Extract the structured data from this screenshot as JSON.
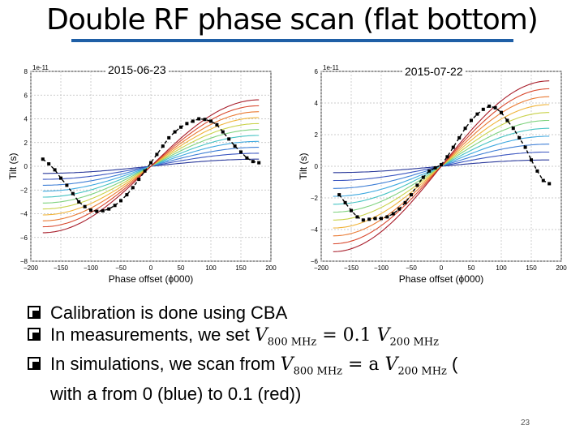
{
  "title": "Double RF phase scan (flat bottom)",
  "colors": {
    "title_rule": "#1f5fa6",
    "measurement": "#000000",
    "sim_palette": [
      "#2b3a9b",
      "#3a55c0",
      "#3f7fd6",
      "#3fa9e0",
      "#45c3c3",
      "#7fd27f",
      "#c9d24a",
      "#f0b43a",
      "#ea7a33",
      "#d9492e",
      "#a81e2b"
    ]
  },
  "slide": {
    "bullets": [
      {
        "text": "Calibration is done using CBA"
      },
      {
        "text": "In measurements, we set ",
        "math": "V",
        "sub1": "800 MHz",
        "mid": " = 0.1 ",
        "math2": "V",
        "sub2": "200 MHz",
        "tail": ""
      },
      {
        "text": "In simulations, we scan from ",
        "math": "V",
        "sub1": "800 MHz",
        "mid": " = a ",
        "math2": "V",
        "sub2": "200 MHz",
        "tail": " (",
        "cont": "with a from 0 (blue) to 0.1 (red))"
      }
    ],
    "page_number": "23"
  },
  "chart_data": [
    {
      "type": "line",
      "title": "2015-06-23",
      "xlabel": "Phase offset (ϕ000)",
      "ylabel": "Tilt (s)",
      "y_multiplier_text": "1e-11",
      "xlim": [
        -200,
        200
      ],
      "ylim": [
        -8,
        8
      ],
      "xticks": [
        -200,
        -150,
        -100,
        -50,
        0,
        50,
        100,
        150,
        200
      ],
      "yticks": [
        -8,
        -6,
        -4,
        -2,
        0,
        2,
        4,
        6,
        8
      ],
      "grid": true,
      "simulation": {
        "a_values": [
          0,
          0.01,
          0.02,
          0.03,
          0.04,
          0.05,
          0.06,
          0.07,
          0.08,
          0.09,
          0.1
        ],
        "x_range": [
          -180,
          180
        ],
        "zero_crossing": 0,
        "amplitudes": [
          0.6,
          1.1,
          1.6,
          2.1,
          2.6,
          3.1,
          3.6,
          4.1,
          4.6,
          5.1,
          5.6
        ]
      },
      "measurement": {
        "x": [
          -180,
          -170,
          -160,
          -150,
          -140,
          -130,
          -120,
          -110,
          -100,
          -90,
          -80,
          -70,
          -60,
          -50,
          -40,
          -30,
          -20,
          -10,
          0,
          10,
          20,
          30,
          40,
          50,
          60,
          70,
          80,
          90,
          100,
          110,
          120,
          130,
          140,
          150,
          160,
          170,
          180
        ],
        "y": [
          0.6,
          0.2,
          -0.3,
          -1.0,
          -1.6,
          -2.3,
          -3.0,
          -3.4,
          -3.7,
          -3.8,
          -3.75,
          -3.6,
          -3.3,
          -2.9,
          -2.4,
          -1.8,
          -1.1,
          -0.4,
          0.3,
          1.0,
          1.7,
          2.4,
          2.9,
          3.3,
          3.6,
          3.8,
          4.0,
          3.95,
          3.8,
          3.5,
          2.9,
          2.3,
          1.7,
          1.2,
          0.7,
          0.4,
          0.3
        ]
      }
    },
    {
      "type": "line",
      "title": "2015-07-22",
      "xlabel": "Phase offset (ϕ000)",
      "ylabel": "Tilt (s)",
      "y_multiplier_text": "1e-11",
      "xlim": [
        -200,
        200
      ],
      "ylim": [
        -6,
        6
      ],
      "xticks": [
        -200,
        -150,
        -100,
        -50,
        0,
        50,
        100,
        150,
        200
      ],
      "yticks": [
        -6,
        -4,
        -2,
        0,
        2,
        4,
        6
      ],
      "grid": true,
      "simulation": {
        "a_values": [
          0,
          0.01,
          0.02,
          0.03,
          0.04,
          0.05,
          0.06,
          0.07,
          0.08,
          0.09,
          0.1
        ],
        "x_range": [
          -180,
          180
        ],
        "zero_crossing": 0,
        "amplitudes": [
          0.4,
          0.9,
          1.4,
          1.9,
          2.4,
          2.9,
          3.4,
          3.9,
          4.4,
          4.9,
          5.4
        ]
      },
      "measurement": {
        "x": [
          -170,
          -160,
          -150,
          -140,
          -130,
          -120,
          -110,
          -100,
          -90,
          -80,
          -70,
          -60,
          -50,
          -40,
          -30,
          -20,
          -10,
          0,
          10,
          20,
          30,
          40,
          50,
          60,
          70,
          80,
          90,
          100,
          110,
          120,
          130,
          140,
          150,
          160,
          170,
          180
        ],
        "y": [
          -1.8,
          -2.3,
          -2.8,
          -3.2,
          -3.4,
          -3.35,
          -3.3,
          -3.3,
          -3.2,
          -3.0,
          -2.7,
          -2.3,
          -1.8,
          -1.2,
          -0.7,
          -0.3,
          -0.1,
          0.1,
          0.6,
          1.2,
          1.8,
          2.4,
          2.9,
          3.3,
          3.6,
          3.8,
          3.7,
          3.4,
          2.9,
          2.4,
          1.8,
          1.2,
          0.4,
          -0.3,
          -0.9,
          -1.1
        ]
      }
    }
  ]
}
